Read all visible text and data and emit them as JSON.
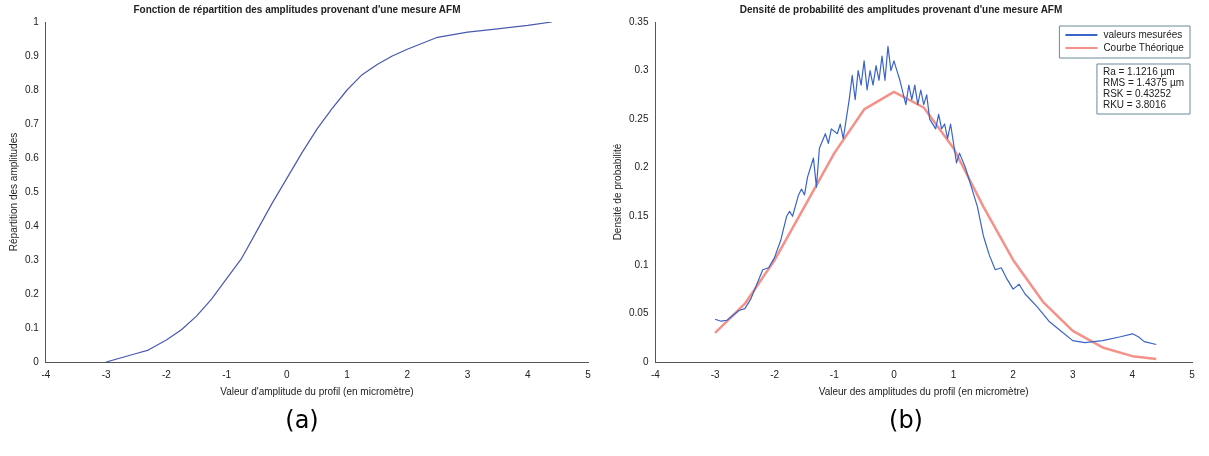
{
  "chart_data": [
    {
      "type": "line",
      "title": "Fonction de répartition des amplitudes provenant d'une mesure AFM",
      "xlabel": "Valeur d'amplitude du profil (en micromètre)",
      "ylabel": "Répartition des amplitudes",
      "xlim": [
        -4,
        5
      ],
      "xticks": [
        -4,
        -3,
        -2,
        -1,
        0,
        1,
        2,
        3,
        4,
        5
      ],
      "ylim": [
        0,
        1
      ],
      "yticks": [
        0,
        0.1,
        0.2,
        0.3,
        0.4,
        0.5,
        0.6,
        0.7,
        0.8,
        0.9,
        1
      ],
      "annotations": [
        "(a)"
      ],
      "series": [
        {
          "color": "#4a58b0",
          "x": [
            -3,
            -2.5,
            -2.3,
            -2,
            -1.75,
            -1.5,
            -1.25,
            -1,
            -0.75,
            -0.5,
            -0.25,
            0,
            0.25,
            0.5,
            0.75,
            1,
            1.25,
            1.5,
            1.75,
            2,
            2.5,
            3,
            3.5,
            4,
            4.4
          ],
          "values": [
            0,
            0.025,
            0.035,
            0.065,
            0.095,
            0.135,
            0.185,
            0.245,
            0.305,
            0.385,
            0.465,
            0.54,
            0.615,
            0.685,
            0.745,
            0.8,
            0.845,
            0.875,
            0.9,
            0.92,
            0.955,
            0.97,
            0.98,
            0.99,
            1
          ]
        }
      ]
    },
    {
      "type": "line",
      "title": "Densité de probabilité des amplitudes provenant d'une mesure AFM",
      "xlabel": "Valeur des amplitudes du profil (en micromètre)",
      "ylabel": "Densité de probabilité",
      "xlim": [
        -4,
        5
      ],
      "xticks": [
        -4,
        -3,
        -2,
        -1,
        0,
        1,
        2,
        3,
        4,
        5
      ],
      "ylim": [
        0,
        0.35
      ],
      "yticks": [
        0,
        0.05,
        0.1,
        0.15,
        0.2,
        0.25,
        0.3,
        0.35
      ],
      "legend": "top right",
      "annotations": [
        "Ra = 1.1216 µm",
        "RMS = 1.4375 µm",
        "RSK = 0.43252",
        "RKU = 3.8016",
        "(b)"
      ],
      "series": [
        {
          "name": "valeurs mesurées",
          "color": "#3a64c8",
          "x": [
            -3,
            -2.9,
            -2.8,
            -2.6,
            -2.5,
            -2.4,
            -2.3,
            -2.2,
            -2.1,
            -2,
            -1.9,
            -1.8,
            -1.75,
            -1.7,
            -1.6,
            -1.55,
            -1.5,
            -1.45,
            -1.35,
            -1.3,
            -1.25,
            -1.15,
            -1.1,
            -1.05,
            -0.95,
            -0.9,
            -0.85,
            -0.75,
            -0.7,
            -0.65,
            -0.6,
            -0.55,
            -0.5,
            -0.45,
            -0.4,
            -0.35,
            -0.3,
            -0.25,
            -0.2,
            -0.15,
            -0.1,
            -0.05,
            0,
            0.05,
            0.1,
            0.2,
            0.25,
            0.3,
            0.35,
            0.4,
            0.45,
            0.5,
            0.55,
            0.6,
            0.7,
            0.75,
            0.8,
            0.85,
            0.9,
            0.95,
            1,
            1.05,
            1.1,
            1.2,
            1.3,
            1.4,
            1.5,
            1.6,
            1.7,
            1.8,
            1.9,
            2,
            2.1,
            2.2,
            2.4,
            2.6,
            2.8,
            3,
            3.2,
            3.5,
            3.8,
            4,
            4.1,
            4.2,
            4.4
          ],
          "values": [
            0.044,
            0.042,
            0.043,
            0.053,
            0.055,
            0.065,
            0.08,
            0.095,
            0.097,
            0.108,
            0.125,
            0.15,
            0.155,
            0.15,
            0.172,
            0.178,
            0.172,
            0.19,
            0.21,
            0.18,
            0.22,
            0.235,
            0.225,
            0.24,
            0.235,
            0.245,
            0.23,
            0.27,
            0.295,
            0.27,
            0.3,
            0.285,
            0.31,
            0.28,
            0.3,
            0.285,
            0.305,
            0.29,
            0.315,
            0.29,
            0.325,
            0.3,
            0.31,
            0.3,
            0.29,
            0.265,
            0.285,
            0.27,
            0.285,
            0.265,
            0.28,
            0.265,
            0.275,
            0.25,
            0.24,
            0.255,
            0.24,
            0.245,
            0.23,
            0.245,
            0.225,
            0.205,
            0.215,
            0.2,
            0.18,
            0.16,
            0.13,
            0.11,
            0.095,
            0.097,
            0.085,
            0.075,
            0.08,
            0.07,
            0.057,
            0.042,
            0.032,
            0.022,
            0.02,
            0.022,
            0.026,
            0.029,
            0.026,
            0.021,
            0.018
          ]
        },
        {
          "name": "Courbe Théorique",
          "color": "#f4928a",
          "x": [
            -3,
            -2.5,
            -2,
            -1.5,
            -1,
            -0.5,
            0,
            0.5,
            1,
            1.5,
            2,
            2.5,
            3,
            3.5,
            4,
            4.4
          ],
          "values": [
            0.03,
            0.06,
            0.105,
            0.16,
            0.215,
            0.26,
            0.278,
            0.262,
            0.22,
            0.16,
            0.105,
            0.062,
            0.032,
            0.015,
            0.006,
            0.003
          ]
        }
      ]
    }
  ]
}
